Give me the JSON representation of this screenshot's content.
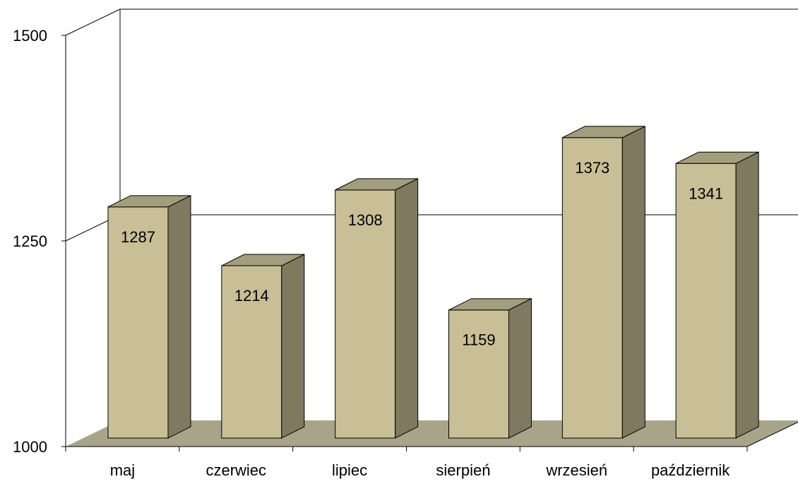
{
  "chart_data": {
    "type": "bar",
    "categories": [
      "maj",
      "czerwiec",
      "lipiec",
      "sierpień",
      "wrzesień",
      "październik"
    ],
    "values": [
      1287,
      1214,
      1308,
      1159,
      1373,
      1341
    ],
    "data_labels": [
      "1287",
      "1214",
      "1308",
      "1159",
      "1373",
      "1341"
    ],
    "ylim": [
      1000,
      1500
    ],
    "yticks": [
      1000,
      1250,
      1500
    ],
    "ytick_labels": [
      "1000",
      "1250",
      "1500"
    ],
    "gridlines": true,
    "three_d": true,
    "colors": {
      "bar_front": "#c8bf96",
      "bar_side": "#7f7a5f",
      "bar_top": "#a29d7c",
      "floor": "#a8a48a",
      "stroke": "#000000"
    }
  }
}
